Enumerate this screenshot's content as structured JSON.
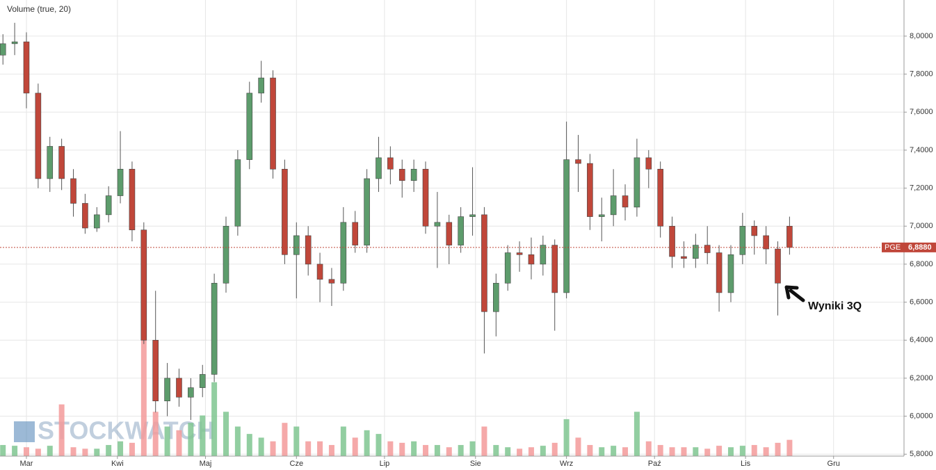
{
  "chart_data": {
    "type": "candlestick",
    "title": "Volume (true, 20)",
    "watermark": "STOCKWATCH",
    "annotation": "Wyniki 3Q",
    "x": [
      -8,
      -4,
      0,
      4,
      8,
      12,
      16,
      20,
      24,
      28,
      32,
      36,
      40,
      44,
      48,
      52,
      56,
      60,
      64,
      68,
      72,
      76,
      80,
      84,
      88,
      92,
      96,
      100,
      104,
      108,
      112,
      116,
      120,
      124,
      128,
      132,
      136,
      140,
      144,
      148,
      152,
      156,
      160,
      164,
      168,
      172,
      176,
      180,
      184,
      188,
      192,
      196,
      200,
      204,
      208,
      212,
      216,
      220,
      224,
      228,
      232,
      236,
      240,
      244,
      248,
      252,
      256,
      260
    ],
    "open": [
      7.9,
      7.96,
      7.97,
      7.7,
      7.25,
      7.42,
      7.25,
      7.12,
      6.99,
      7.06,
      7.16,
      7.3,
      6.98,
      6.4,
      6.08,
      6.2,
      6.1,
      6.15,
      6.22,
      6.7,
      7.0,
      7.35,
      7.7,
      7.78,
      7.3,
      6.85,
      6.95,
      6.8,
      6.72,
      6.7,
      7.02,
      6.9,
      7.25,
      7.36,
      7.3,
      7.24,
      7.3,
      7.0,
      7.02,
      6.9,
      7.05,
      7.06,
      6.55,
      6.7,
      6.86,
      6.85,
      6.8,
      6.9,
      6.65,
      7.35,
      7.33,
      7.05,
      7.06,
      7.16,
      7.1,
      7.36,
      7.3,
      7.0,
      6.84,
      6.83,
      6.9,
      6.86,
      6.65,
      6.85,
      7.0,
      6.95,
      6.88,
      7.0
    ],
    "high": [
      8.01,
      8.07,
      8.02,
      7.75,
      7.47,
      7.46,
      7.3,
      7.17,
      7.1,
      7.21,
      7.5,
      7.34,
      7.02,
      6.66,
      6.28,
      6.25,
      6.2,
      6.27,
      6.75,
      7.05,
      7.4,
      7.76,
      7.87,
      7.82,
      7.35,
      7.02,
      7.0,
      6.86,
      6.78,
      7.1,
      7.08,
      7.3,
      7.47,
      7.42,
      7.35,
      7.35,
      7.34,
      7.18,
      7.06,
      7.1,
      7.31,
      7.1,
      6.75,
      6.9,
      6.92,
      6.94,
      6.95,
      6.93,
      7.55,
      7.48,
      7.38,
      7.15,
      7.3,
      7.22,
      7.46,
      7.4,
      7.34,
      7.05,
      6.92,
      6.96,
      7.0,
      6.9,
      6.9,
      7.07,
      7.03,
      7.0,
      6.92,
      7.05
    ],
    "low": [
      7.85,
      7.9,
      7.62,
      7.2,
      7.18,
      7.19,
      7.05,
      6.96,
      6.97,
      7.02,
      7.12,
      6.92,
      6.38,
      6.02,
      6.0,
      6.05,
      5.98,
      6.1,
      6.18,
      6.65,
      6.95,
      7.3,
      7.65,
      7.25,
      6.8,
      6.62,
      6.74,
      6.6,
      6.58,
      6.66,
      6.86,
      6.86,
      7.18,
      7.22,
      7.15,
      7.18,
      6.96,
      6.78,
      6.8,
      6.86,
      6.95,
      6.33,
      6.42,
      6.66,
      6.76,
      6.72,
      6.74,
      6.45,
      6.62,
      7.18,
      6.98,
      6.92,
      7.0,
      7.03,
      7.05,
      7.2,
      6.94,
      6.78,
      6.78,
      6.78,
      6.8,
      6.55,
      6.6,
      6.8,
      6.85,
      6.8,
      6.53,
      6.85
    ],
    "close": [
      7.96,
      7.97,
      7.7,
      7.25,
      7.42,
      7.25,
      7.12,
      6.99,
      7.06,
      7.16,
      7.3,
      6.98,
      6.4,
      6.08,
      6.2,
      6.1,
      6.15,
      6.22,
      6.7,
      7.0,
      7.35,
      7.7,
      7.78,
      7.3,
      6.85,
      6.95,
      6.8,
      6.72,
      6.7,
      7.02,
      6.9,
      7.25,
      7.36,
      7.3,
      7.24,
      7.3,
      7.0,
      7.02,
      6.9,
      7.05,
      7.06,
      6.55,
      6.7,
      6.86,
      6.85,
      6.8,
      6.9,
      6.65,
      7.35,
      7.33,
      7.05,
      7.06,
      7.16,
      7.1,
      7.36,
      7.3,
      7.0,
      6.84,
      6.83,
      6.9,
      6.86,
      6.65,
      6.85,
      7.0,
      6.95,
      6.88,
      6.7,
      6.888
    ],
    "volume": [
      15,
      14,
      12,
      10,
      14,
      70,
      12,
      10,
      10,
      15,
      20,
      18,
      160,
      60,
      40,
      35,
      45,
      55,
      100,
      60,
      40,
      30,
      25,
      20,
      45,
      40,
      20,
      20,
      15,
      40,
      25,
      35,
      30,
      20,
      18,
      20,
      15,
      15,
      12,
      15,
      20,
      40,
      15,
      12,
      10,
      12,
      14,
      18,
      50,
      25,
      15,
      12,
      14,
      12,
      60,
      20,
      15,
      12,
      12,
      12,
      10,
      14,
      12,
      14,
      15,
      12,
      18,
      22
    ],
    "up_color": "#5d9c6c",
    "down_color": "#c0473a",
    "volume_up_color": "#7fc590",
    "volume_down_color": "#f39a9a",
    "last_price": {
      "symbol": "PGE",
      "value": 6.888,
      "label": "6,8880"
    },
    "xlim": [
      -9,
      299
    ],
    "xticks": [
      {
        "value": 0,
        "label": "Mar"
      },
      {
        "value": 31,
        "label": "Kwi"
      },
      {
        "value": 61,
        "label": "Maj"
      },
      {
        "value": 92,
        "label": "Cze"
      },
      {
        "value": 122,
        "label": "Lip"
      },
      {
        "value": 153,
        "label": "Sie"
      },
      {
        "value": 184,
        "label": "Wrz"
      },
      {
        "value": 214,
        "label": "Paź"
      },
      {
        "value": 245,
        "label": "Lis"
      },
      {
        "value": 275,
        "label": "Gru"
      }
    ],
    "ylim": [
      5.79,
      8.19
    ],
    "yticks": [
      {
        "value": 5.8,
        "label": "5,8000"
      },
      {
        "value": 6.0,
        "label": "6,0000"
      },
      {
        "value": 6.2,
        "label": "6,2000"
      },
      {
        "value": 6.4,
        "label": "6,4000"
      },
      {
        "value": 6.6,
        "label": "6,6000"
      },
      {
        "value": 6.8,
        "label": "6,8000"
      },
      {
        "value": 7.0,
        "label": "7,0000"
      },
      {
        "value": 7.2,
        "label": "7,2000"
      },
      {
        "value": 7.4,
        "label": "7,4000"
      },
      {
        "value": 7.6,
        "label": "7,6000"
      },
      {
        "value": 7.8,
        "label": "7,8000"
      },
      {
        "value": 8.0,
        "label": "8,0000"
      }
    ],
    "grid": true
  }
}
